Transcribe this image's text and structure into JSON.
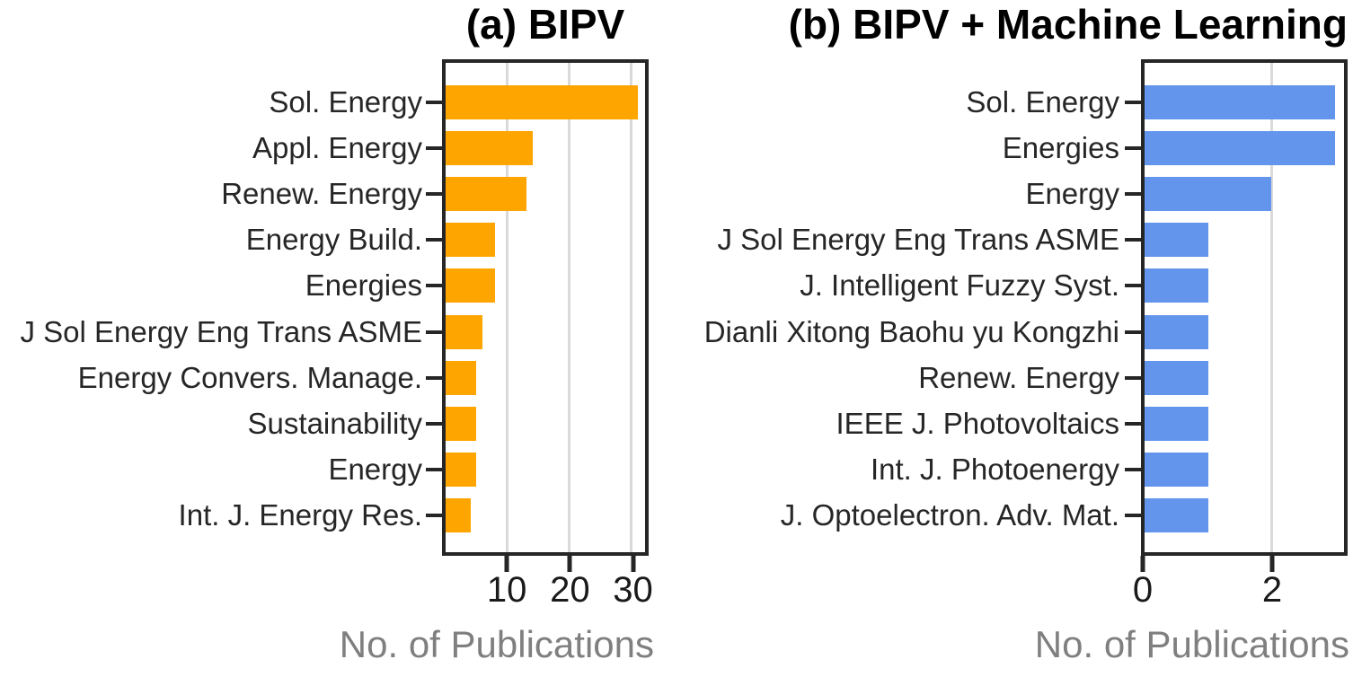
{
  "figure": {
    "background": "#ffffff"
  },
  "colors": {
    "spine": "#262626",
    "grid": "#D9D9D9",
    "y_label_text": "#262626",
    "tick_text": "#1A1A1A",
    "axis_label_text": "#7F7F7F",
    "title_text": "#000000"
  },
  "chart_data": [
    {
      "type": "bar",
      "orientation": "horizontal",
      "title": "(a) BIPV",
      "xlabel": "No. of Publications",
      "categories": [
        "Sol. Energy",
        "Appl. Energy",
        "Renew. Energy",
        "Energy Build.",
        "Energies",
        "J Sol Energy Eng Trans ASME",
        "Energy Convers. Manage.",
        "Sustainability",
        "Energy",
        "Int. J. Energy Res."
      ],
      "values": [
        31,
        14,
        13,
        8,
        8,
        6,
        5,
        5,
        5,
        4
      ],
      "xlim": [
        0,
        32.2
      ],
      "xticks": [
        10,
        20,
        30
      ],
      "xtick_labels": [
        "10",
        "20",
        "30"
      ],
      "bar_color": "#FFA500",
      "grid": "vertical"
    },
    {
      "type": "bar",
      "orientation": "horizontal",
      "title": "(b) BIPV + Machine Learning",
      "xlabel": "No. of Publications",
      "categories": [
        "Sol. Energy",
        "Energies",
        "Energy",
        "J Sol Energy Eng Trans ASME",
        "J. Intelligent Fuzzy Syst.",
        "Dianli Xitong Baohu yu Kongzhi",
        "Renew. Energy",
        "IEEE J. Photovoltaics",
        "Int. J. Photoenergy",
        "J. Optoelectron. Adv. Mat."
      ],
      "values": [
        3,
        3,
        2,
        1,
        1,
        1,
        1,
        1,
        1,
        1
      ],
      "xlim": [
        0,
        3.14
      ],
      "xticks": [
        0,
        2
      ],
      "xtick_labels": [
        "0",
        "2"
      ],
      "bar_color": "#6495ED",
      "grid": "vertical"
    }
  ]
}
